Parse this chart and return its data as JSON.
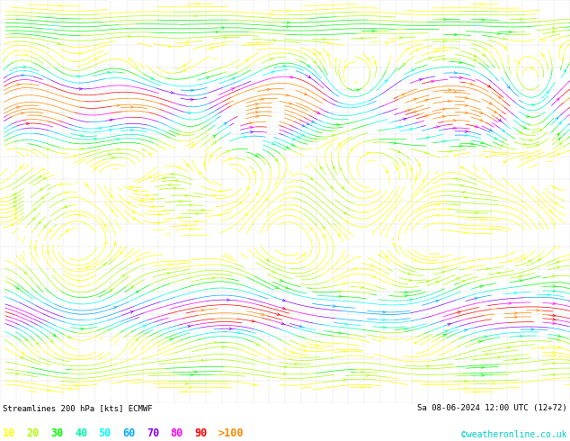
{
  "title_left": "Streamlines 200 hPa [kts] ECMWF",
  "title_right": "Sa 08-06-2024 12:00 UTC (12+72)",
  "copyright": "©weatheronline.co.uk",
  "legend_values": [
    "10",
    "20",
    "30",
    "40",
    "50",
    "60",
    "70",
    "80",
    "90",
    ">100"
  ],
  "legend_colors": [
    "#ffff00",
    "#aaff00",
    "#00ff00",
    "#00ffaa",
    "#00ffff",
    "#00aaff",
    "#8800ff",
    "#ff00ff",
    "#ff0000",
    "#ff8800"
  ],
  "bg_color": "#ffffff",
  "figwidth": 6.34,
  "figheight": 4.9,
  "dpi": 100
}
